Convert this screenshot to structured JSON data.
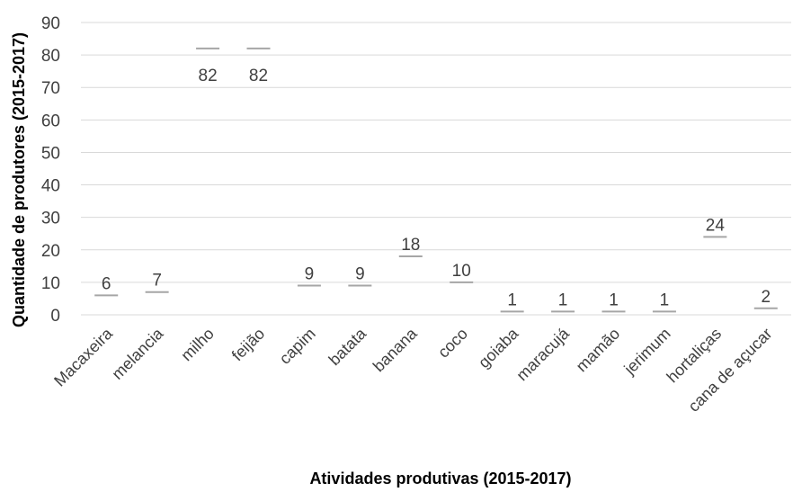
{
  "chart_data": {
    "type": "line",
    "categories": [
      "Macaxeira",
      "melancia",
      "milho",
      "feijão",
      "capim",
      "batata",
      "banana",
      "coco",
      "goiaba",
      "maracujá",
      "mamão",
      "jerimum",
      "hortaliças",
      "cana de açucar"
    ],
    "series": [
      {
        "values": [
          6,
          7,
          82,
          82,
          9,
          9,
          18,
          10,
          1,
          1,
          1,
          1,
          24,
          2
        ]
      }
    ],
    "data_labels": [
      "6",
      "7",
      "82",
      "82",
      "9",
      "9",
      "18",
      "10",
      "1",
      "1",
      "1",
      "1",
      "24",
      "2"
    ],
    "xlabel": "Atividades produtivas (2015-2017)",
    "ylabel": "Quantidade de produtores (2015-2017)",
    "ylim": [
      0,
      90
    ],
    "yticks": [
      0,
      10,
      20,
      30,
      40,
      50,
      60,
      70,
      80,
      90
    ],
    "grid": true,
    "legend": "none",
    "colors": {
      "marker": "#a6a6a6",
      "grid": "#d9d9d9",
      "text": "#404040"
    }
  }
}
